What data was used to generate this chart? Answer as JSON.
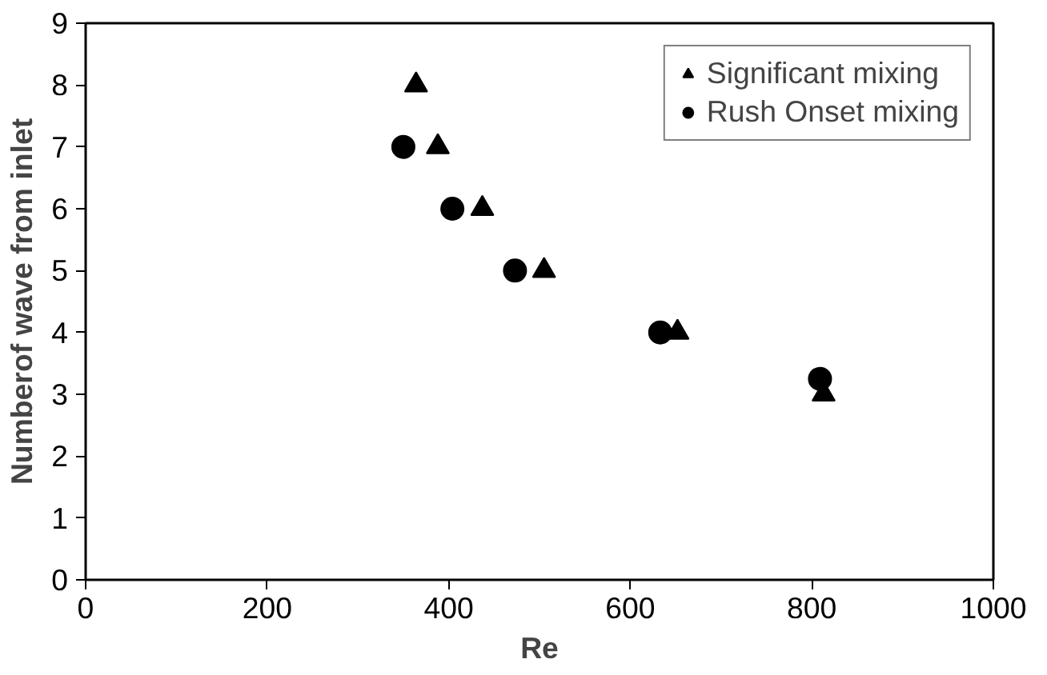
{
  "chart_data": {
    "type": "scatter",
    "xlabel": "Re",
    "ylabel": "Numberof wave from inlet",
    "xlim": [
      0,
      1000
    ],
    "ylim": [
      0,
      9
    ],
    "xticks": [
      0,
      200,
      400,
      600,
      800,
      1000
    ],
    "yticks": [
      0,
      1,
      2,
      3,
      4,
      5,
      6,
      7,
      8,
      9
    ],
    "grid": false,
    "legend": "top right",
    "series": [
      {
        "name": "Significant mixing",
        "color": "#000000",
        "marker": "triangle",
        "x": [
          364,
          388,
          437,
          505,
          652,
          813
        ],
        "values": [
          8,
          7,
          6,
          5,
          4,
          3
        ]
      },
      {
        "name": "Rush Onset mixing",
        "color": "#000000",
        "marker": "circle",
        "x": [
          350,
          404,
          473,
          633,
          809
        ],
        "values": [
          7,
          6,
          5,
          4,
          3.25
        ]
      }
    ]
  }
}
